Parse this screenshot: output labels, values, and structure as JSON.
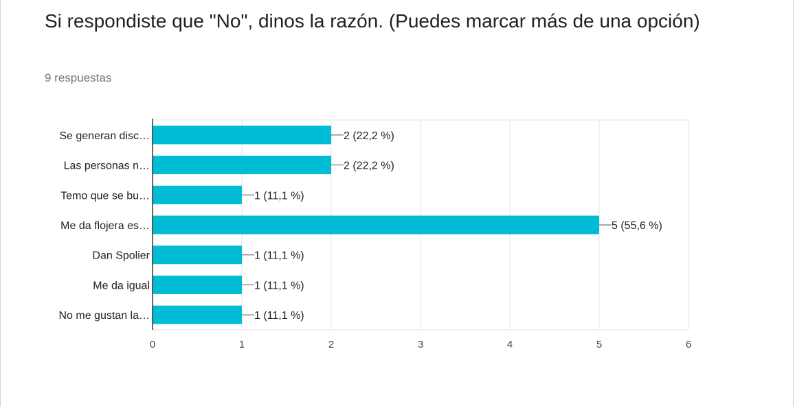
{
  "question": {
    "title": "Si respondiste que \"No\", dinos la razón. (Puedes marcar más de una opción)",
    "responses": "9 respuestas"
  },
  "colors": {
    "bar": "#00bcd4",
    "grid": "#e6e6e6",
    "axis": "#333333",
    "text": "#222222"
  },
  "chart_data": {
    "type": "bar",
    "orientation": "horizontal",
    "categories": [
      "Se generan disc…",
      "Las personas n…",
      "Temo que se bu…",
      "Me da flojera es…",
      "Dan Spolier",
      "Me da igual",
      "No me gustan la…"
    ],
    "values": [
      2,
      2,
      1,
      5,
      1,
      1,
      1
    ],
    "data_labels": [
      "2 (22,2 %)",
      "2 (22,2 %)",
      "1 (11,1 %)",
      "5 (55,6 %)",
      "1 (11,1 %)",
      "1 (11,1 %)",
      "1 (11,1 %)"
    ],
    "xlim": [
      0,
      6
    ],
    "xticks": [
      "0",
      "1",
      "2",
      "3",
      "4",
      "5",
      "6"
    ],
    "grid": true,
    "legend": "none"
  }
}
